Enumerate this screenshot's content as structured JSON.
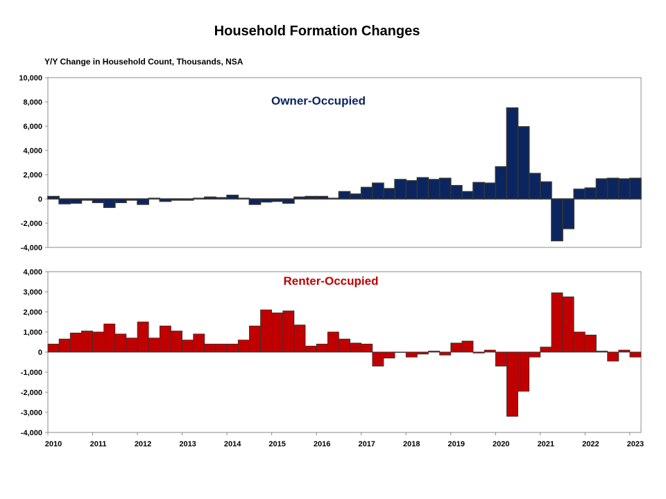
{
  "chart_data": {
    "type": "bar",
    "title": "Household Formation Changes",
    "subtitle": "Y/Y Change in Household Count, Thousands,  NSA",
    "x_tick_labels": [
      "2010",
      "2011",
      "2012",
      "2013",
      "2014",
      "2015",
      "2016",
      "2017",
      "2018",
      "2019",
      "2020",
      "2021",
      "2022",
      "2023"
    ],
    "panels": [
      {
        "name": "Owner-Occupied",
        "color": "#0b2561",
        "ylim": [
          -4000,
          10000
        ],
        "ytick_labels": [
          "10,000",
          "8,000",
          "6,000",
          "4,000",
          "2,000",
          "0",
          "-2,000",
          "-4,000"
        ],
        "values": [
          200,
          -400,
          -350,
          -100,
          -300,
          -700,
          -300,
          -100,
          -450,
          50,
          -200,
          -100,
          -100,
          50,
          150,
          100,
          300,
          50,
          -450,
          -250,
          -200,
          -350,
          150,
          200,
          200,
          50,
          600,
          400,
          950,
          1300,
          850,
          1600,
          1500,
          1750,
          1600,
          1700,
          1100,
          600,
          1350,
          1300,
          2650,
          7500,
          5950,
          2100,
          1400,
          -3450,
          -2450,
          800,
          900,
          1650,
          1700,
          1650,
          1700
        ]
      },
      {
        "name": "Renter-Occupied",
        "color": "#c00000",
        "ylim": [
          -4000,
          4000
        ],
        "ytick_labels": [
          "4,000",
          "3,000",
          "2,000",
          "1,000",
          "0",
          "-1,000",
          "-2,000",
          "-3,000",
          "-4,000"
        ],
        "values": [
          400,
          650,
          950,
          1050,
          1000,
          1400,
          900,
          700,
          1500,
          700,
          1300,
          1050,
          600,
          900,
          400,
          400,
          400,
          600,
          1300,
          2100,
          1950,
          2050,
          1350,
          300,
          400,
          1000,
          650,
          450,
          400,
          -700,
          -300,
          0,
          -250,
          -100,
          50,
          -150,
          450,
          550,
          -50,
          100,
          -700,
          -3200,
          -1950,
          -250,
          250,
          2950,
          2750,
          1000,
          850,
          50,
          -450,
          100,
          -250
        ]
      }
    ]
  }
}
